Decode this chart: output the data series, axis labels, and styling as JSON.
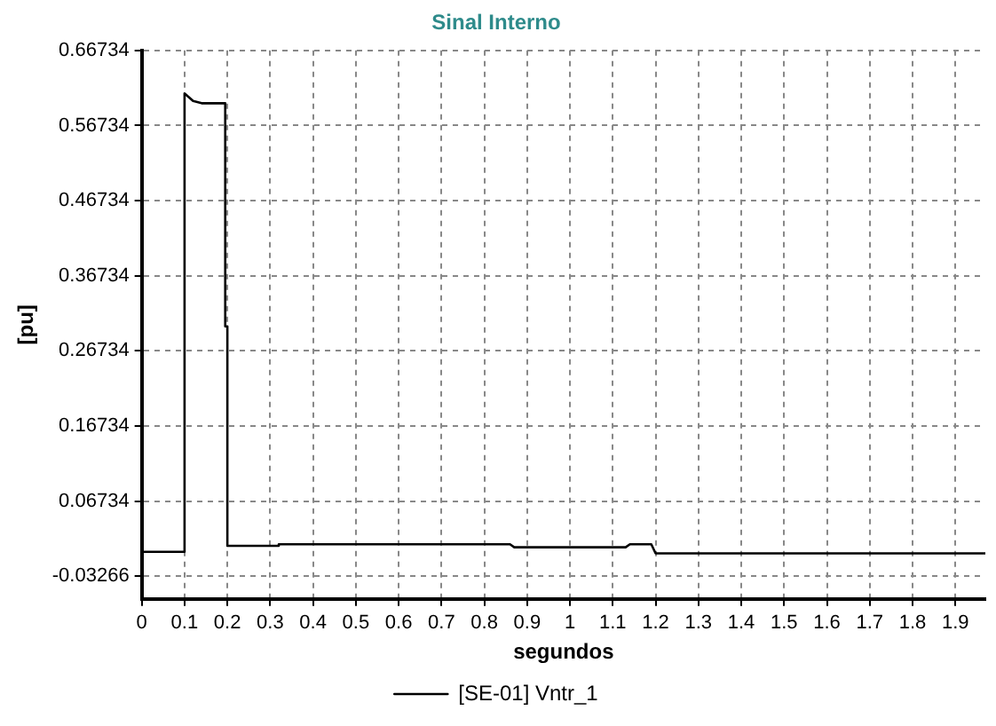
{
  "chart_data": {
    "type": "line",
    "title": "Sinal Interno",
    "xlabel": "segundos",
    "ylabel": "[pu]",
    "xlim": [
      0,
      1.97
    ],
    "xticks": [
      0,
      0.1,
      0.2,
      0.3,
      0.4,
      0.5,
      0.6,
      0.7,
      0.8,
      0.9,
      1,
      1.1,
      1.2,
      1.3,
      1.4,
      1.5,
      1.6,
      1.7,
      1.8,
      1.9
    ],
    "ylim": [
      -0.06266,
      0.66734
    ],
    "yticks": [
      -0.03266,
      0.06734,
      0.16734,
      0.26734,
      0.36734,
      0.46734,
      0.56734,
      0.66734
    ],
    "grid": true,
    "legend": "bottom",
    "marker": "none",
    "line_style": "solid",
    "series": [
      {
        "name": "[SE-01] Vntr_1",
        "color": "#000000",
        "x": [
          0,
          0.1,
          0.1,
          0.12,
          0.14,
          0.195,
          0.195,
          0.2,
          0.2,
          0.32,
          0.32,
          0.86,
          0.87,
          1.13,
          1.14,
          1.19,
          1.2,
          1.97
        ],
        "values": [
          0,
          0,
          0.61,
          0.6,
          0.597,
          0.597,
          0.3,
          0.3,
          0.008,
          0.008,
          0.01,
          0.01,
          0.006,
          0.006,
          0.01,
          0.01,
          -0.002,
          -0.002
        ]
      }
    ]
  }
}
